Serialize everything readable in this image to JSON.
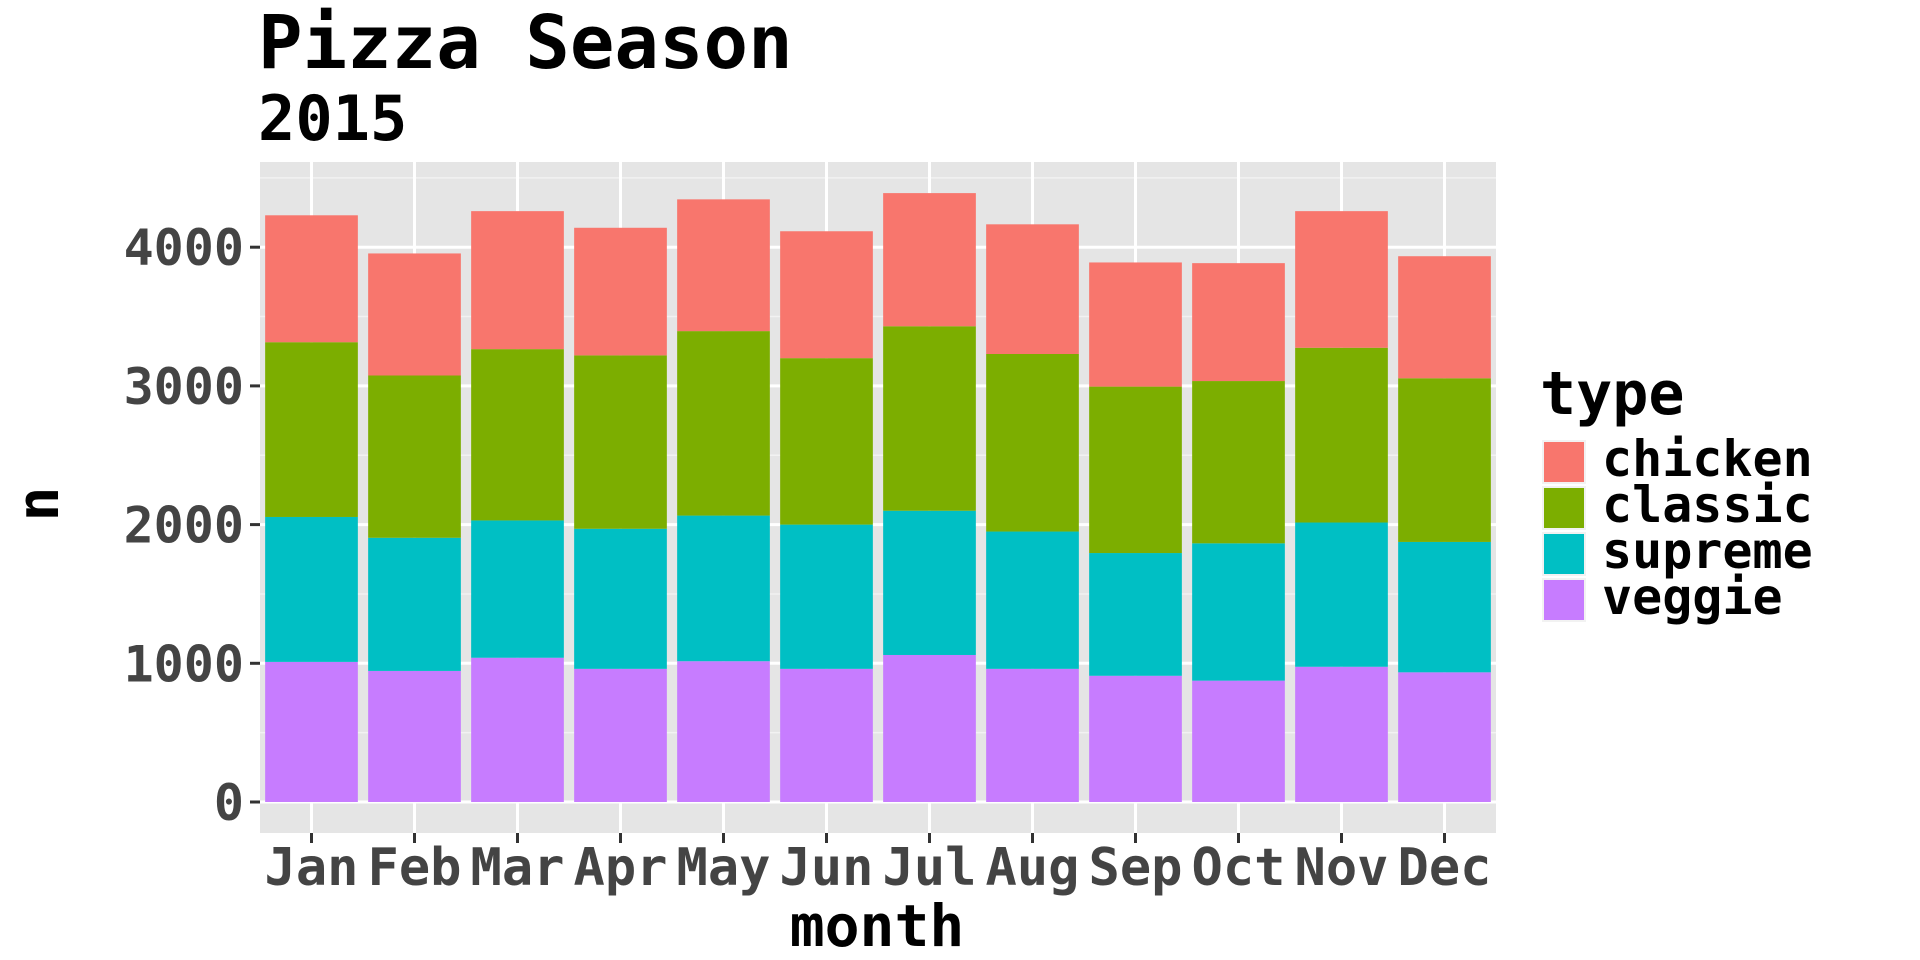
{
  "chart_data": {
    "type": "bar",
    "stacked": true,
    "title": "Pizza Season",
    "subtitle": "2015",
    "xlabel": "month",
    "ylabel": "n",
    "categories": [
      "Jan",
      "Feb",
      "Mar",
      "Apr",
      "May",
      "Jun",
      "Jul",
      "Aug",
      "Sep",
      "Oct",
      "Nov",
      "Dec"
    ],
    "ylim": [
      0,
      4500
    ],
    "yticks": [
      0,
      1000,
      2000,
      3000,
      4000
    ],
    "grid": true,
    "legend_title": "type",
    "legend_position": "right",
    "series": [
      {
        "name": "chicken",
        "color": "#F8766D",
        "values": [
          915,
          880,
          995,
          920,
          950,
          915,
          960,
          935,
          895,
          850,
          985,
          880
        ]
      },
      {
        "name": "classic",
        "color": "#7CAE00",
        "values": [
          1260,
          1170,
          1235,
          1250,
          1330,
          1200,
          1330,
          1280,
          1200,
          1170,
          1260,
          1180
        ]
      },
      {
        "name": "supreme",
        "color": "#00BFC4",
        "values": [
          1045,
          960,
          990,
          1010,
          1050,
          1040,
          1040,
          990,
          885,
          990,
          1040,
          940
        ]
      },
      {
        "name": "veggie",
        "color": "#C77CFF",
        "values": [
          1010,
          945,
          1040,
          960,
          1015,
          960,
          1060,
          960,
          910,
          875,
          975,
          935
        ]
      }
    ]
  }
}
